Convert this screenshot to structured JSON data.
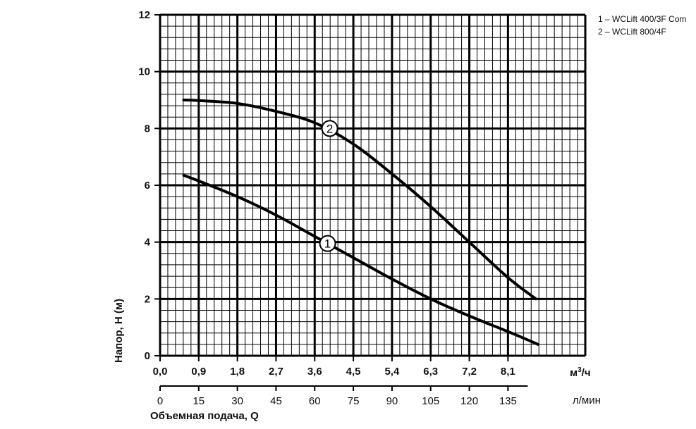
{
  "chart_data": {
    "type": "line",
    "ylabel": "Напор, H (м)",
    "xlabel": "Объемная подача, Q",
    "x_unit": "м³/ч",
    "x_unit_base": "м",
    "x_unit_sup": "3",
    "x_unit_suffix": "/ч",
    "x2_unit": "л/мин",
    "xlim": [
      0,
      9.9
    ],
    "ylim": [
      0,
      12
    ],
    "x_ticks": [
      "0,0",
      "0,9",
      "1,8",
      "2,7",
      "3,6",
      "4,5",
      "5,4",
      "6,3",
      "7,2",
      "8,1"
    ],
    "x_tick_values": [
      0,
      0.9,
      1.8,
      2.7,
      3.6,
      4.5,
      5.4,
      6.3,
      7.2,
      8.1
    ],
    "x2_ticks": [
      "0",
      "15",
      "30",
      "45",
      "60",
      "75",
      "90",
      "105",
      "120",
      "135"
    ],
    "x2_tick_values": [
      0,
      15,
      30,
      45,
      60,
      75,
      90,
      105,
      120,
      135
    ],
    "y_ticks": [
      "0",
      "2",
      "4",
      "6",
      "8",
      "10",
      "12"
    ],
    "y_tick_values": [
      0,
      2,
      4,
      6,
      8,
      10,
      12
    ],
    "grid": true,
    "legend": [
      "1 – WCLift 400/3F Com",
      "2 – WCLift 800/4F"
    ],
    "legend_position": "top-right",
    "series": [
      {
        "label": "1",
        "label_at": [
          3.9,
          3.95
        ],
        "x": [
          0.55,
          0.9,
          1.8,
          2.7,
          3.6,
          4.5,
          5.4,
          6.3,
          7.2,
          8.1,
          8.8
        ],
        "y": [
          6.35,
          6.15,
          5.6,
          4.95,
          4.2,
          3.45,
          2.7,
          2.0,
          1.4,
          0.85,
          0.4
        ]
      },
      {
        "label": "2",
        "label_at": [
          3.95,
          8.0
        ],
        "x": [
          0.55,
          0.9,
          1.8,
          2.7,
          3.6,
          4.5,
          5.4,
          6.3,
          7.2,
          8.1,
          8.75
        ],
        "y": [
          9.0,
          8.98,
          8.88,
          8.6,
          8.2,
          7.45,
          6.4,
          5.25,
          4.0,
          2.75,
          2.0
        ]
      }
    ]
  }
}
